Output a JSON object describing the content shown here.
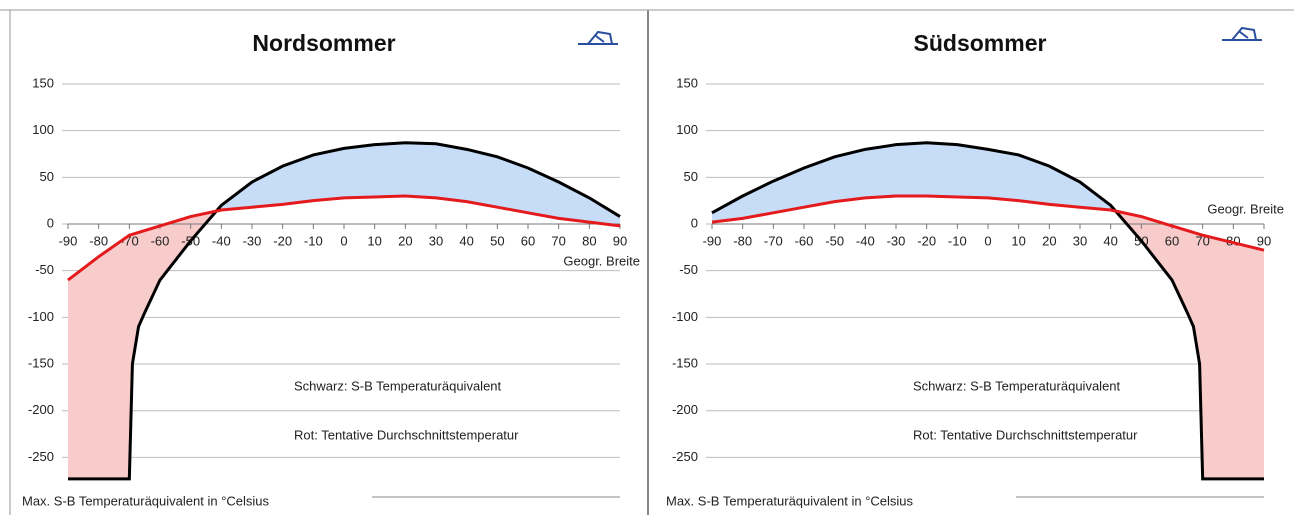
{
  "chart_data": [
    {
      "type": "line",
      "title": "Nordsommer",
      "x_label": "Geogr. Breite",
      "y_label": "Max. S-B Temperaturäquivalent in °Celsius",
      "annotations": [
        "Schwarz: S-B Temperaturäquivalent",
        "Rot: Tentative Durchschnittstemperatur"
      ],
      "x": [
        -90,
        -80,
        -70,
        -69,
        -67,
        -65,
        -60,
        -50,
        -40,
        -30,
        -20,
        -10,
        0,
        10,
        20,
        30,
        40,
        50,
        60,
        70,
        80,
        90
      ],
      "series": [
        {
          "name": "Schwarz",
          "color": "#000000",
          "values": [
            -273,
            -273,
            -273,
            -150,
            -110,
            -95,
            -60,
            -18,
            20,
            45,
            62,
            74,
            81,
            85,
            87,
            86,
            80,
            72,
            60,
            45,
            28,
            8
          ]
        },
        {
          "name": "Rot",
          "color": "#e41a1c",
          "values": [
            -60,
            -35,
            -12,
            -11,
            -9,
            -7,
            -2,
            8,
            15,
            18,
            21,
            25,
            28,
            29,
            30,
            28,
            24,
            18,
            12,
            6,
            2,
            -2
          ]
        }
      ],
      "fill_colors": [
        "#c6dcf7",
        "#f9cccc"
      ],
      "xlim": [
        -90,
        90
      ],
      "xticks": [
        -90,
        -80,
        -70,
        -60,
        -50,
        -40,
        -30,
        -20,
        -10,
        0,
        10,
        20,
        30,
        40,
        50,
        60,
        70,
        80,
        90
      ],
      "ylim": [
        -290,
        150
      ],
      "yticks": [
        150,
        100,
        50,
        0,
        -50,
        -100,
        -150,
        -200,
        -250
      ],
      "grid": true
    },
    {
      "type": "line",
      "title": "Südsommer",
      "x_label": "Geogr. Breite",
      "y_label": "Max. S-B Temperaturäquivalent in °Celsius",
      "annotations": [
        "Schwarz: S-B Temperaturäquivalent",
        "Rot: Tentative Durchschnittstemperatur"
      ],
      "x": [
        -90,
        -80,
        -70,
        -60,
        -50,
        -40,
        -30,
        -20,
        -10,
        0,
        10,
        20,
        30,
        40,
        50,
        60,
        65,
        67,
        69,
        70,
        80,
        90
      ],
      "series": [
        {
          "name": "Schwarz",
          "color": "#000000",
          "values": [
            12,
            30,
            46,
            60,
            72,
            80,
            85,
            87,
            85,
            80,
            74,
            62,
            45,
            20,
            -18,
            -60,
            -95,
            -110,
            -150,
            -273,
            -273,
            -273
          ]
        },
        {
          "name": "Rot",
          "color": "#e41a1c",
          "values": [
            2,
            6,
            12,
            18,
            24,
            28,
            30,
            30,
            29,
            28,
            25,
            21,
            18,
            15,
            8,
            -2,
            -7,
            -9,
            -11,
            -12,
            -20,
            -28
          ]
        }
      ],
      "fill_colors": [
        "#c6dcf7",
        "#f9cccc"
      ],
      "xlim": [
        -90,
        90
      ],
      "xticks": [
        -90,
        -80,
        -70,
        -60,
        -50,
        -40,
        -30,
        -20,
        -10,
        0,
        10,
        20,
        30,
        40,
        50,
        60,
        70,
        80,
        90
      ],
      "ylim": [
        -290,
        150
      ],
      "yticks": [
        150,
        100,
        50,
        0,
        -50,
        -100,
        -150,
        -200,
        -250
      ],
      "grid": true
    }
  ]
}
